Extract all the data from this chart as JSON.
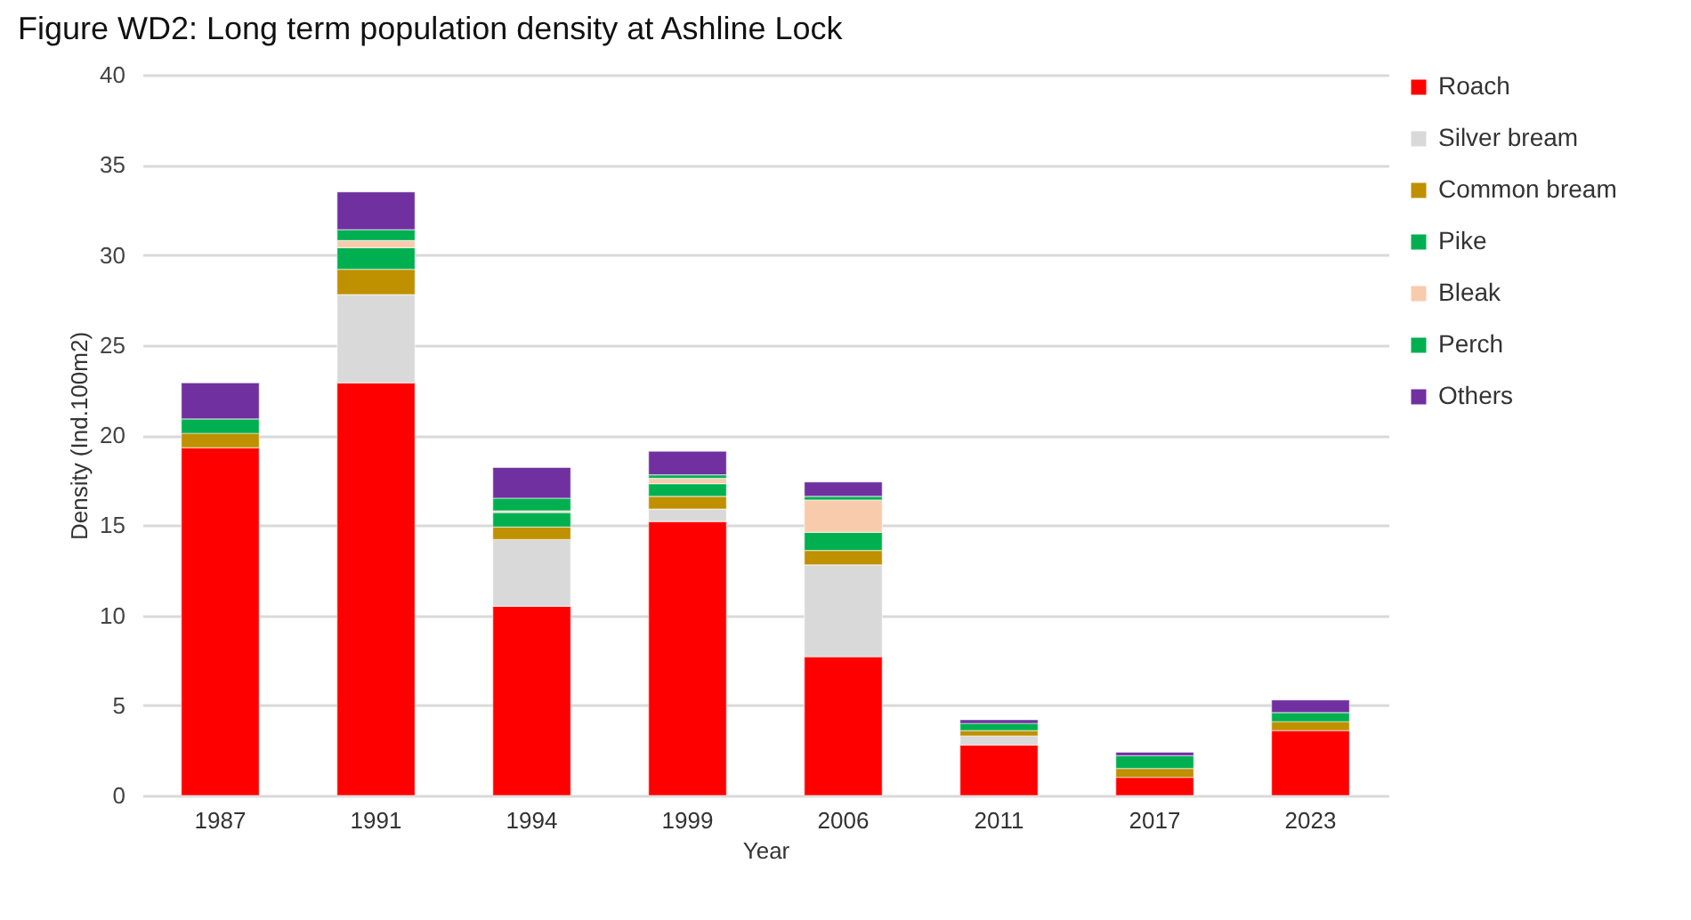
{
  "chart_data": {
    "type": "bar",
    "title": "Figure WD2: Long term population density at Ashline Lock",
    "xlabel": "Year",
    "ylabel": "Density (Ind.100m2)",
    "categories": [
      "1987",
      "1991",
      "1994",
      "1999",
      "2006",
      "2011",
      "2017",
      "2023"
    ],
    "stacked": true,
    "ylim": [
      0,
      40
    ],
    "yticks": [
      0,
      5,
      10,
      15,
      20,
      25,
      30,
      35,
      40
    ],
    "grid": "y",
    "legend": "top right",
    "series": [
      {
        "name": "Roach",
        "color": "#ff0000",
        "values": [
          19.3,
          22.9,
          10.5,
          15.2,
          7.7,
          2.8,
          1.0,
          3.6
        ]
      },
      {
        "name": "Silver bream",
        "color": "#d9d9d9",
        "values": [
          null,
          4.9,
          3.7,
          0.7,
          5.1,
          0.5,
          null,
          null
        ]
      },
      {
        "name": "Common bream",
        "color": "#bf9000",
        "values": [
          0.8,
          1.4,
          0.7,
          0.7,
          0.8,
          0.3,
          0.5,
          0.5
        ]
      },
      {
        "name": "Pike",
        "color": "#00b050",
        "values": [
          0.8,
          1.2,
          0.8,
          0.7,
          1.0,
          0.4,
          0.7,
          0.5
        ]
      },
      {
        "name": "Bleak",
        "color": "#f8cbad",
        "values": [
          null,
          0.4,
          0.1,
          0.3,
          1.8,
          null,
          null,
          null
        ]
      },
      {
        "name": "Perch",
        "color": "#00b050",
        "values": [
          null,
          0.6,
          0.7,
          0.2,
          0.2,
          null,
          null,
          null
        ]
      },
      {
        "name": "Others",
        "color": "#7030a0",
        "values": [
          2.0,
          2.1,
          1.7,
          1.3,
          0.8,
          0.2,
          0.2,
          0.7
        ]
      }
    ]
  }
}
